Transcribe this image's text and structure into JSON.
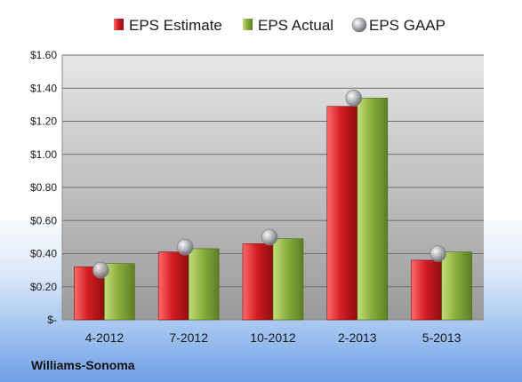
{
  "chart_data": {
    "type": "bar",
    "categories": [
      "4-2012",
      "7-2012",
      "10-2012",
      "2-2013",
      "5-2013"
    ],
    "series": [
      {
        "name": "EPS Estimate",
        "kind": "bar",
        "color": "#c0181c",
        "values": [
          0.32,
          0.41,
          0.46,
          1.29,
          0.36
        ]
      },
      {
        "name": "EPS Actual",
        "kind": "bar",
        "color": "#84a83a",
        "values": [
          0.34,
          0.43,
          0.49,
          1.34,
          0.41
        ]
      },
      {
        "name": "EPS GAAP",
        "kind": "marker",
        "color": "#a7abb0",
        "values": [
          0.3,
          0.44,
          0.5,
          1.34,
          0.4
        ]
      }
    ],
    "yticks": [
      0,
      0.2,
      0.4,
      0.6,
      0.8,
      1.0,
      1.2,
      1.4,
      1.6
    ],
    "ytick_labels": [
      "$-",
      "$0.20",
      "$0.40",
      "$0.60",
      "$0.80",
      "$1.00",
      "$1.20",
      "$1.40",
      "$1.60"
    ],
    "ylim": [
      0,
      1.6
    ],
    "grid": true,
    "legend_position": "top",
    "company": "Williams-Sonoma",
    "plot_background": "#a8a8a8"
  }
}
